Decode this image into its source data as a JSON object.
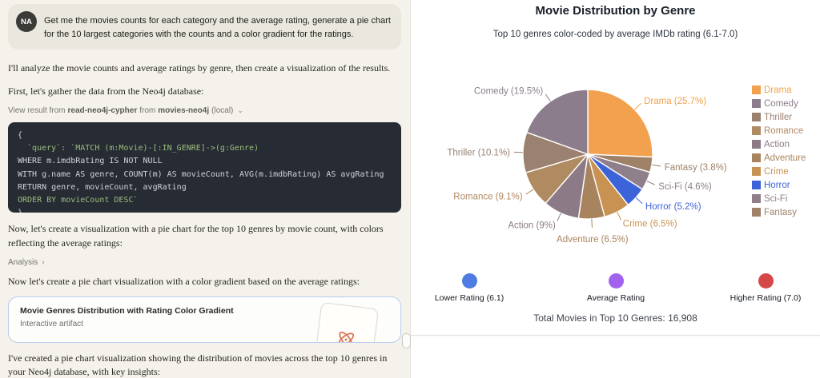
{
  "chat": {
    "user": {
      "avatar": "NA",
      "message": "Get me the movies counts for each category and the average rating, generate a pie chart for the 10 largest categories with the counts and a color gradient for the ratings."
    },
    "paragraphs": {
      "intro": "I'll analyze the movie counts and average ratings by genre, then create a visualization of the results.",
      "gather": "First, let's gather the data from the Neo4j database:",
      "viz": "Now, let's create a visualization with a pie chart for the top 10 genres by movie count, with colors reflecting the average ratings:",
      "gradient": "Now let's create a pie chart visualization with a color gradient based on the average ratings:",
      "summary": "I've created a pie chart visualization showing the distribution of movies across the top 10 genres in your Neo4j database, with key insights:"
    },
    "tool_result": {
      "prefix": "View result from",
      "tool": "read-neo4j-cypher",
      "middle": "from",
      "server": "movies-neo4j",
      "suffix": "(local)",
      "chevron": "⌄"
    },
    "code": {
      "lines": [
        {
          "text": "{",
          "tone": "plain"
        },
        {
          "text": "  `query`: `MATCH (m:Movie)-[:IN_GENRE]->(g:Genre)",
          "tone": "green"
        },
        {
          "text": "WHERE m.imdbRating IS NOT NULL",
          "tone": "plain"
        },
        {
          "text": "WITH g.name AS genre, COUNT(m) AS movieCount, AVG(m.imdbRating) AS avgRating",
          "tone": "plain"
        },
        {
          "text": "RETURN genre, movieCount, avgRating",
          "tone": "plain"
        },
        {
          "text": "ORDER BY movieCount DESC`",
          "tone": "green"
        },
        {
          "text": "}",
          "tone": "plain"
        }
      ]
    },
    "analysis_label": "Analysis",
    "analysis_chevron": "›",
    "artifact": {
      "title": "Movie Genres Distribution with Rating Color Gradient",
      "subtitle": "Interactive artifact"
    }
  },
  "panel": {
    "title": "Movie Distribution by Genre",
    "subtitle": "Top 10 genres color-coded by average IMDb rating (6.1-7.0)",
    "total": "Total Movies in Top 10 Genres: 16,908"
  },
  "chart_data": {
    "type": "pie",
    "title": "Movie Distribution by Genre",
    "subtitle": "Top 10 genres color-coded by average IMDb rating (6.1-7.0)",
    "legend_position": "right",
    "total_movies": 16908,
    "total_label": "Total Movies in Top 10 Genres: 16,908",
    "rating_range": [
      6.1,
      7.0
    ],
    "slices": [
      {
        "genre": "Drama",
        "percent": 25.7,
        "label": "Drama (25.7%)",
        "color": "#F2A14E"
      },
      {
        "genre": "Comedy",
        "percent": 19.5,
        "label": "Comedy (19.5%)",
        "color": "#8C7D8C"
      },
      {
        "genre": "Thriller",
        "percent": 10.1,
        "label": "Thriller (10.1%)",
        "color": "#9A8170"
      },
      {
        "genre": "Romance",
        "percent": 9.1,
        "label": "Romance (9.1%)",
        "color": "#B08A61"
      },
      {
        "genre": "Action",
        "percent": 9.0,
        "label": "Action (9%)",
        "color": "#8C7B86"
      },
      {
        "genre": "Adventure",
        "percent": 6.5,
        "label": "Adventure (6.5%)",
        "color": "#A8845E"
      },
      {
        "genre": "Crime",
        "percent": 6.5,
        "label": "Crime (6.5%)",
        "color": "#C89252"
      },
      {
        "genre": "Horror",
        "percent": 5.2,
        "label": "Horror (5.2%)",
        "color": "#3D63D8"
      },
      {
        "genre": "Sci-Fi",
        "percent": 4.6,
        "label": "Sci-Fi (4.6%)",
        "color": "#8F7F8B"
      },
      {
        "genre": "Fantasy",
        "percent": 3.8,
        "label": "Fantasy (3.8%)",
        "color": "#9E8167"
      }
    ],
    "rating_legend": [
      {
        "label": "Lower Rating (6.1)",
        "color": "#4e7ce2"
      },
      {
        "label": "Average Rating",
        "color": "#a163ef"
      },
      {
        "label": "Higher Rating (7.0)",
        "color": "#d64848"
      }
    ]
  }
}
